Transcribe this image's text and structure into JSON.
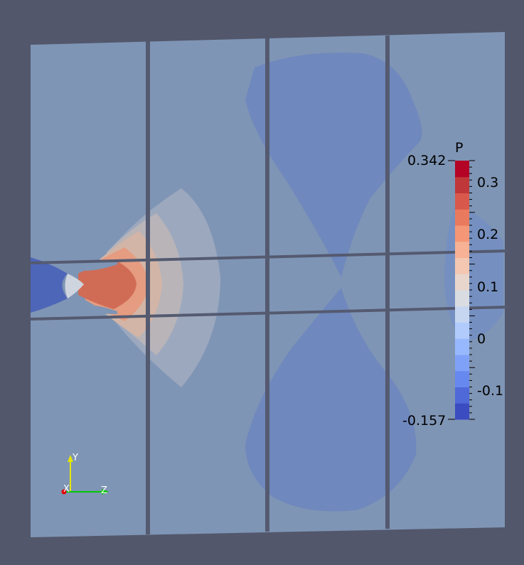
{
  "viewer": {
    "background_color": "#52576b",
    "mesh_base_color": "#7f95b5",
    "seam_color": "#545a70"
  },
  "color_legend": {
    "title": "P",
    "max_label": "0.342",
    "min_label": "-0.157",
    "range": [
      -0.157,
      0.342
    ],
    "tick_labels": [
      "0.3",
      "0.2",
      "0.1",
      "0",
      "-0.1"
    ],
    "colormap": [
      "#3b4cc0",
      "#4f69d8",
      "#6788ee",
      "#7fa1f7",
      "#98b8fe",
      "#b0cbfc",
      "#c6d6f1",
      "#d9dce1",
      "#e8d6cc",
      "#f3c7b1",
      "#f7b194",
      "#f49777",
      "#e97a5d",
      "#d8594b",
      "#c0373a",
      "#b40426"
    ]
  },
  "orientation_axes": {
    "y_label": "Y",
    "x_label": "X",
    "z_label": "Z",
    "y_color": "#e6e600",
    "z_color": "#00c800",
    "x_color": "#e00000"
  }
}
